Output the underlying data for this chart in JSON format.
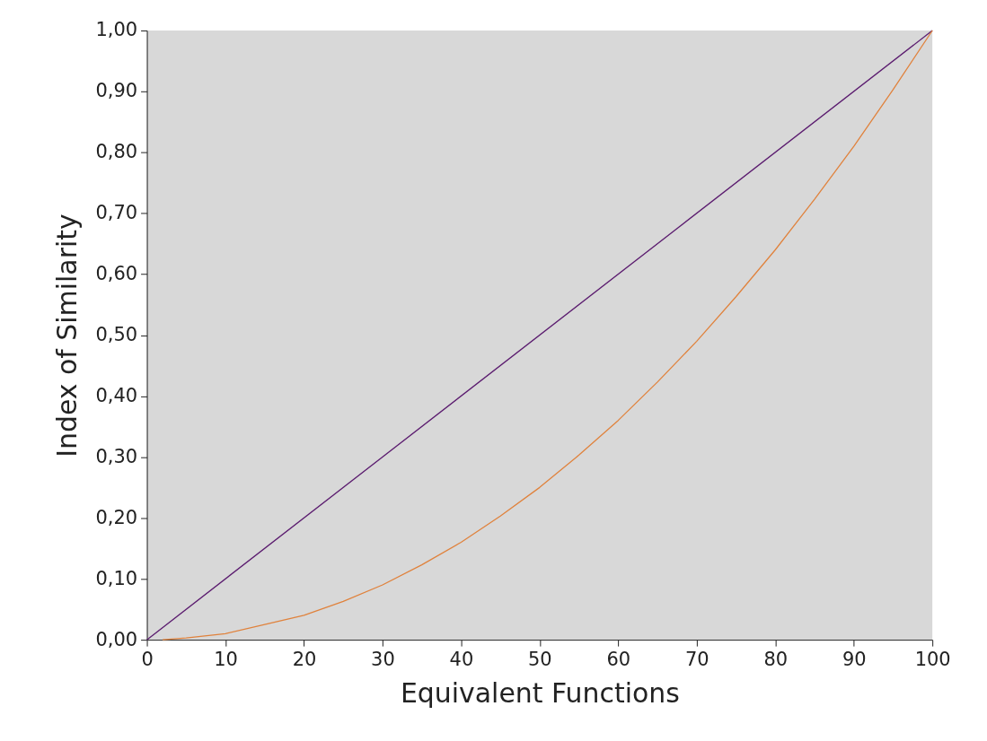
{
  "chart_data": {
    "type": "line",
    "xlabel": "Equivalent Functions",
    "ylabel": "Index of Similarity",
    "xlim": [
      0,
      100
    ],
    "xticks": [
      0,
      10,
      20,
      30,
      40,
      50,
      60,
      70,
      80,
      90,
      100
    ],
    "ylim": [
      0,
      1
    ],
    "yticks": [
      {
        "value": 0,
        "label": "0,00"
      },
      {
        "value": 0.1,
        "label": "0,10"
      },
      {
        "value": 0.2,
        "label": "0,20"
      },
      {
        "value": 0.3,
        "label": "0,30"
      },
      {
        "value": 0.4,
        "label": "0,40"
      },
      {
        "value": 0.5,
        "label": "0,50"
      },
      {
        "value": 0.6,
        "label": "0,60"
      },
      {
        "value": 0.7,
        "label": "0,70"
      },
      {
        "value": 0.8,
        "label": "0,80"
      },
      {
        "value": 0.9,
        "label": "0,90"
      },
      {
        "value": 1,
        "label": "1,00"
      }
    ],
    "grid": false,
    "legend": false,
    "marker": "none",
    "line_style": "solid",
    "series": [
      {
        "color": "#5a1a6e",
        "x": [
          0,
          100
        ],
        "values": [
          0,
          1
        ]
      },
      {
        "color": "#e0823c",
        "x": [
          2,
          5,
          10,
          15,
          20,
          25,
          30,
          35,
          40,
          45,
          50,
          55,
          60,
          65,
          70,
          75,
          80,
          85,
          90,
          95,
          100
        ],
        "values": [
          0,
          0.003,
          0.01,
          0.025,
          0.04,
          0.063,
          0.09,
          0.123,
          0.16,
          0.203,
          0.25,
          0.303,
          0.36,
          0.423,
          0.49,
          0.563,
          0.64,
          0.723,
          0.81,
          0.903,
          1
        ]
      }
    ]
  }
}
